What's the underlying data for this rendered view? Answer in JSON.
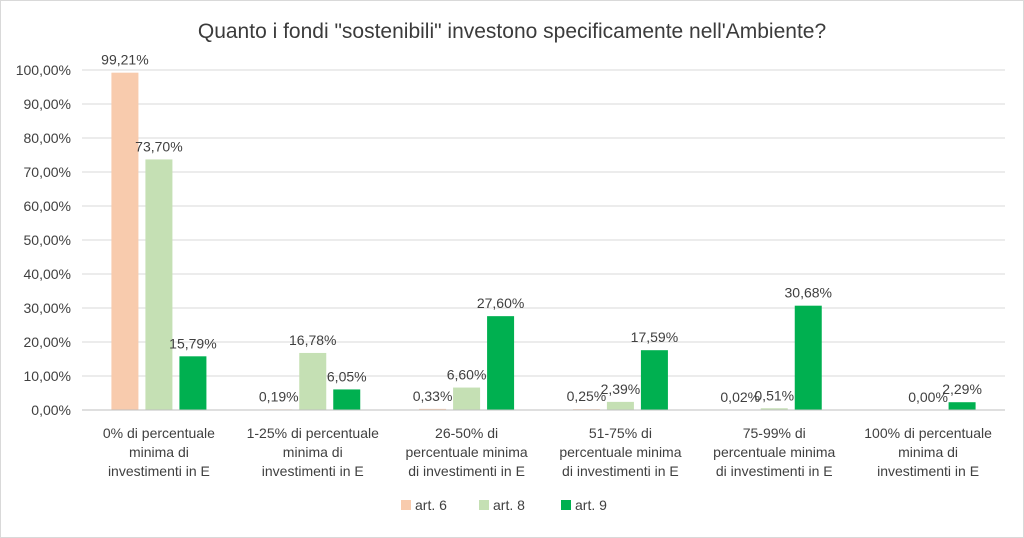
{
  "chart_data": {
    "type": "bar",
    "title": "Quanto i fondi \"sostenibili\" investono specificamente nell'Ambiente?",
    "xlabel": "",
    "ylabel": "",
    "ylim": [
      0,
      100
    ],
    "yticks": [
      "0,00%",
      "10,00%",
      "20,00%",
      "30,00%",
      "40,00%",
      "50,00%",
      "60,00%",
      "70,00%",
      "80,00%",
      "90,00%",
      "100,00%"
    ],
    "grid": true,
    "legend_position": "bottom",
    "categories": [
      [
        "0% di percentuale",
        "minima di",
        "investimenti in E"
      ],
      [
        "1-25% di percentuale",
        "minima di",
        "investimenti in E"
      ],
      [
        "26-50% di",
        "percentuale minima",
        "di investimenti in E"
      ],
      [
        "51-75% di",
        "percentuale minima",
        "di investimenti in E"
      ],
      [
        "75-99% di",
        "percentuale minima",
        "di investimenti in E"
      ],
      [
        "100% di percentuale",
        "minima di",
        "investimenti in E"
      ]
    ],
    "series": [
      {
        "name": "art. 6",
        "color": "#f8cbad",
        "values": [
          99.21,
          0.19,
          0.33,
          0.25,
          0.02,
          null
        ],
        "labels": [
          "99,21%",
          "0,19%",
          "0,33%",
          "0,25%",
          "0,02%",
          ""
        ]
      },
      {
        "name": "art. 8",
        "color": "#c5e0b4",
        "values": [
          73.7,
          16.78,
          6.6,
          2.39,
          0.51,
          0.0
        ],
        "labels": [
          "73,70%",
          "16,78%",
          "6,60%",
          "2,39%",
          "0,51%",
          "0,00%"
        ]
      },
      {
        "name": "art. 9",
        "color": "#00b050",
        "values": [
          15.79,
          6.05,
          27.6,
          17.59,
          30.68,
          2.29
        ],
        "labels": [
          "15,79%",
          "6,05%",
          "27,60%",
          "17,59%",
          "30,68%",
          "2,29%"
        ]
      }
    ]
  }
}
